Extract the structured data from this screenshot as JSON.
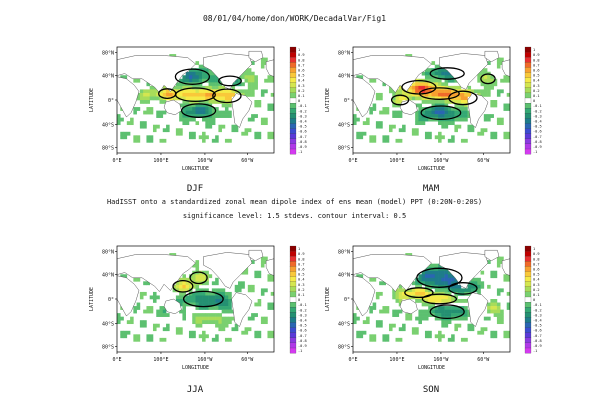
{
  "header": "08/01/04/home/don/WORK/DecadalVar/Fig1",
  "main_title": "HadISST onto a standardized zonal mean dipole index of ens mean (model) PPT (0:20N-0:20S)",
  "significance_note": "significance level: 1.5 stdevs. contour interval: 0.5",
  "chart_data": [
    {
      "type": "heatmap",
      "panel": "DJF",
      "xlabel": "LONGITUDE",
      "ylabel": "LATITUDE",
      "xticks": [
        "0°E",
        "100°E",
        "160°W",
        "60°W"
      ],
      "yticks": [
        "80°N",
        "40°N",
        "0°",
        "40°S",
        "80°S"
      ],
      "colorbar": {
        "values": [
          "1",
          "0.9",
          "0.8",
          "0.7",
          "0.6",
          "0.5",
          "0.4",
          "0.3",
          "0.2",
          "0.1",
          "0",
          "-0.1",
          "-0.2",
          "-0.3",
          "-0.4",
          "-0.5",
          "-0.6",
          "-0.7",
          "-0.8",
          "-0.9",
          "-1"
        ]
      }
    },
    {
      "type": "heatmap",
      "panel": "MAM",
      "xlabel": "LONGITUDE",
      "ylabel": "LATITUDE",
      "xticks": [
        "0°E",
        "100°E",
        "160°W",
        "60°W"
      ],
      "yticks": [
        "80°N",
        "40°N",
        "0°",
        "40°S",
        "80°S"
      ],
      "colorbar": {
        "values": [
          "1",
          "0.9",
          "0.8",
          "0.7",
          "0.6",
          "0.5",
          "0.4",
          "0.3",
          "0.2",
          "0.1",
          "0",
          "-0.1",
          "-0.2",
          "-0.3",
          "-0.4",
          "-0.5",
          "-0.6",
          "-0.7",
          "-0.8",
          "-0.9",
          "-1"
        ]
      }
    },
    {
      "type": "heatmap",
      "panel": "JJA",
      "xlabel": "LONGITUDE",
      "ylabel": "LATITUDE",
      "xticks": [
        "0°E",
        "100°E",
        "160°W",
        "60°W"
      ],
      "yticks": [
        "80°N",
        "40°N",
        "0°",
        "40°S",
        "80°S"
      ],
      "colorbar": {
        "values": [
          "1",
          "0.9",
          "0.8",
          "0.7",
          "0.6",
          "0.5",
          "0.4",
          "0.3",
          "0.2",
          "0.1",
          "0",
          "-0.1",
          "-0.2",
          "-0.3",
          "-0.4",
          "-0.5",
          "-0.6",
          "-0.7",
          "-0.8",
          "-0.9",
          "-1"
        ]
      }
    },
    {
      "type": "heatmap",
      "panel": "SON",
      "xlabel": "LONGITUDE",
      "ylabel": "LATITUDE",
      "xticks": [
        "0°E",
        "100°E",
        "160°W",
        "60°W"
      ],
      "yticks": [
        "80°N",
        "40°N",
        "0°",
        "40°S",
        "80°S"
      ],
      "colorbar": {
        "values": [
          "1",
          "0.9",
          "0.8",
          "0.7",
          "0.6",
          "0.5",
          "0.4",
          "0.3",
          "0.2",
          "0.1",
          "0",
          "-0.1",
          "-0.2",
          "-0.3",
          "-0.4",
          "-0.5",
          "-0.6",
          "-0.7",
          "-0.8",
          "-0.9",
          "-1"
        ]
      }
    }
  ],
  "colors": {
    "palette": [
      "#8b0000",
      "#c00000",
      "#e83030",
      "#f06a2a",
      "#f7a030",
      "#f9c83a",
      "#f5ea48",
      "#d4e650",
      "#a8dc5a",
      "#7ad070",
      "#ffffff",
      "#5cc070",
      "#34a874",
      "#249072",
      "#1e7c8a",
      "#2a66b2",
      "#3b4cd0",
      "#5a3ad8",
      "#8a3ae0",
      "#b03ae8",
      "#d43af0"
    ],
    "land": "#ffffff",
    "contour": "#000000"
  }
}
